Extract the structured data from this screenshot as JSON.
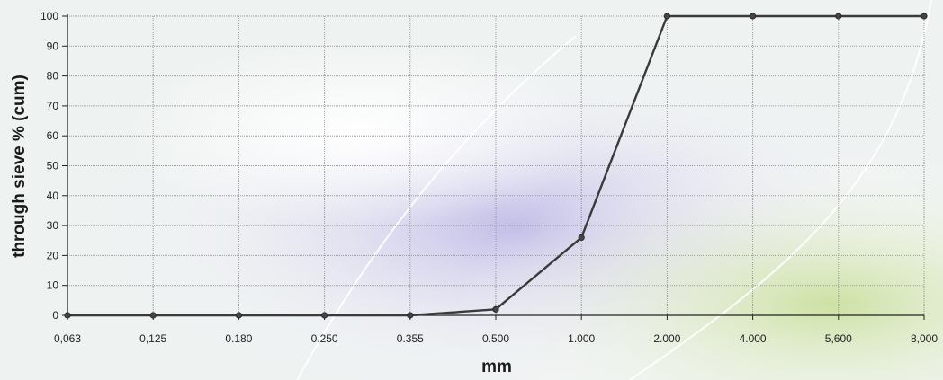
{
  "chart_data": {
    "type": "line",
    "title": "",
    "xlabel": "mm",
    "ylabel": "through sieve % (cum)",
    "categories": [
      "0,063",
      "0,125",
      "0.180",
      "0.250",
      "0.355",
      "0.500",
      "1.000",
      "2.000",
      "4.000",
      "5,600",
      "8,000"
    ],
    "series": [
      {
        "values": [
          0,
          0,
          0,
          0,
          0,
          2,
          26,
          100,
          100,
          100,
          100
        ]
      }
    ],
    "yticks": [
      0,
      10,
      20,
      30,
      40,
      50,
      60,
      70,
      80,
      90,
      100
    ],
    "ylim": [
      0,
      100
    ],
    "grid": true,
    "legend": "none",
    "colors": {
      "line": "#3a3a3a",
      "marker": "#444444",
      "grid": "#9a9a9a",
      "axis": "#222222"
    }
  }
}
